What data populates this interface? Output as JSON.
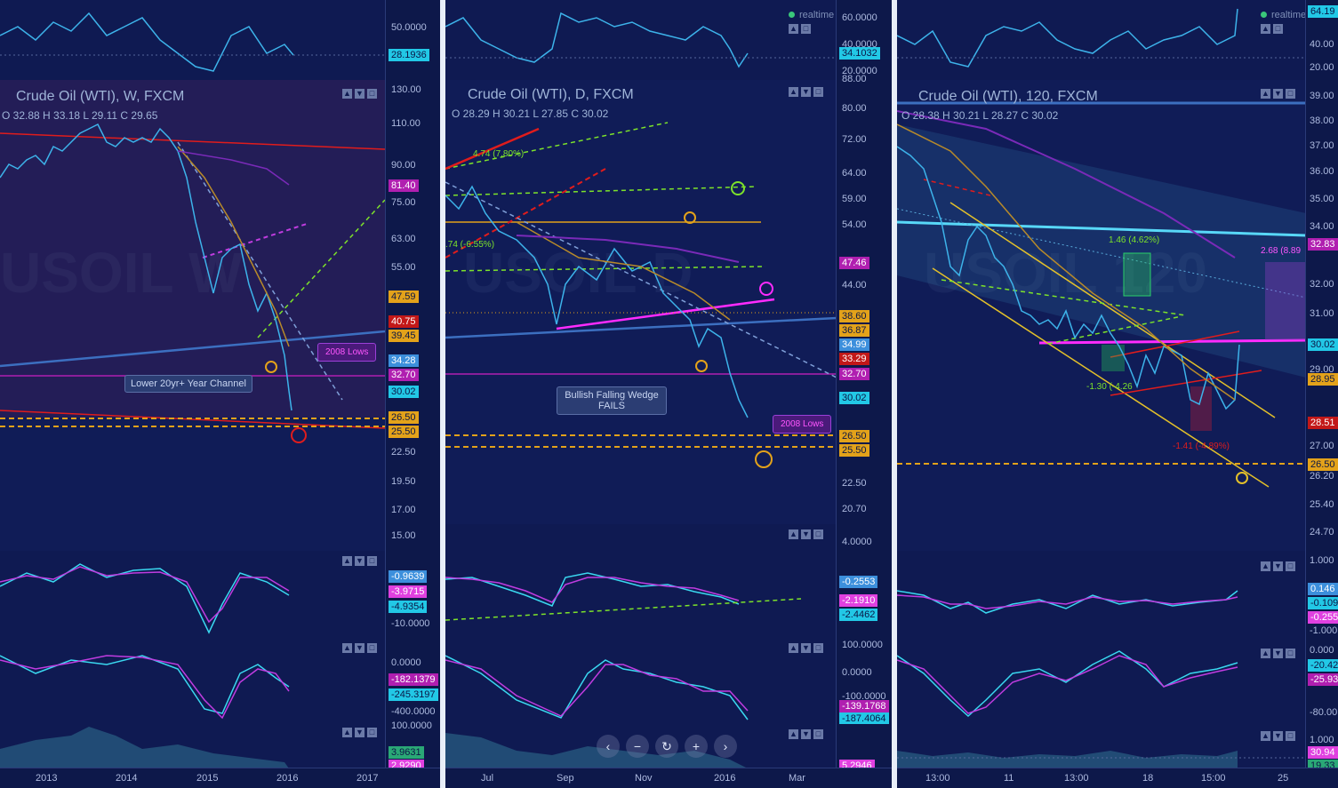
{
  "panels": [
    {
      "id": "weekly",
      "realtime": "",
      "title": "Crude Oil (WTI), W, FXCM",
      "ohlc": "O 32.88  H 33.18  L 29.11  C 29.65",
      "watermark": "USOIL W",
      "rsi_ticks": [
        "50.0000"
      ],
      "rsi_value": "28.1936",
      "price_ticks": [
        "130.00",
        "110.00",
        "90.00",
        "75.00",
        "63.00",
        "55.00",
        "22.50",
        "19.50",
        "17.00",
        "15.00"
      ],
      "price_tags": [
        {
          "text": "81.40",
          "color": "#b01fb0"
        },
        {
          "text": "47.59",
          "color": "#e3a21a"
        },
        {
          "text": "40.75",
          "color": "#c21818"
        },
        {
          "text": "39.45",
          "color": "#e3a21a"
        },
        {
          "text": "34.28",
          "color": "#3c8fdc"
        },
        {
          "text": "32.70",
          "color": "#b01fb0"
        },
        {
          "text": "30.02",
          "color": "#22c8e6"
        },
        {
          "text": "26.50",
          "color": "#e3a21a"
        },
        {
          "text": "25.50",
          "color": "#e3a21a"
        }
      ],
      "macd_ticks": [
        "-10.0000"
      ],
      "macd_tags": [
        {
          "text": "-0.9639",
          "color": "#3c8fdc"
        },
        {
          "text": "-3.9715",
          "color": "#e040e0"
        },
        {
          "text": "-4.9354",
          "color": "#22c8e6"
        }
      ],
      "stoch_ticks": [
        "0.0000",
        "-400.0000"
      ],
      "stoch_tags": [
        {
          "text": "-182.1379",
          "color": "#b01fb0"
        },
        {
          "text": "-245.3197",
          "color": "#22c8e6"
        }
      ],
      "vol_ticks": [
        "100.0000"
      ],
      "vol_tags": [
        {
          "text": "3.9631",
          "color": "#2aa876"
        },
        {
          "text": "2.9290",
          "color": "#e040e0"
        }
      ],
      "x_labels": [
        "2013",
        "2014",
        "2015",
        "2016",
        "2017"
      ],
      "callouts": [
        "Lower 20yr+ Year Channel"
      ],
      "lows": "2008 Lows"
    },
    {
      "id": "daily",
      "realtime": "realtime",
      "title": "Crude Oil (WTI), D, FXCM",
      "ohlc": "O 28.29  H 30.21  L 27.85  C 30.02",
      "watermark": "USOIL D",
      "rsi_ticks": [
        "60.0000",
        "40.0000",
        "20.0000"
      ],
      "rsi_value": "34.1032",
      "price_ticks": [
        "88.00",
        "80.00",
        "72.00",
        "64.00",
        "59.00",
        "54.00",
        "44.00",
        "22.50",
        "20.70"
      ],
      "price_tags": [
        {
          "text": "47.46",
          "color": "#b01fb0"
        },
        {
          "text": "38.60",
          "color": "#e3a21a"
        },
        {
          "text": "36.87",
          "color": "#e3a21a"
        },
        {
          "text": "34.99",
          "color": "#3c8fdc"
        },
        {
          "text": "33.29",
          "color": "#c21818"
        },
        {
          "text": "32.70",
          "color": "#b01fb0"
        },
        {
          "text": "30.02",
          "color": "#22c8e6"
        },
        {
          "text": "26.50",
          "color": "#e3a21a"
        },
        {
          "text": "25.50",
          "color": "#e3a21a"
        }
      ],
      "macd_ticks": [
        "4.0000"
      ],
      "macd_tags": [
        {
          "text": "-0.2553",
          "color": "#3c8fdc"
        },
        {
          "text": "-2.1910",
          "color": "#e040e0"
        },
        {
          "text": "-2.4462",
          "color": "#22c8e6"
        }
      ],
      "stoch_ticks": [
        "100.0000",
        "0.0000",
        "-100.0000"
      ],
      "stoch_tags": [
        {
          "text": "-139.1768",
          "color": "#b01fb0"
        },
        {
          "text": "-187.4064",
          "color": "#22c8e6"
        }
      ],
      "vol_ticks": [],
      "vol_tags": [
        {
          "text": "5.2946",
          "color": "#e040e0"
        }
      ],
      "x_labels": [
        "Jul",
        "Sep",
        "Nov",
        "2016",
        "Mar"
      ],
      "callouts": [
        "Bullish Falling Wedge\nFAILS"
      ],
      "lows": "2008 Lows",
      "annotations": [
        "4.74 (7.80%)",
        ".74 (-6.55%)"
      ],
      "nav": [
        "‹",
        "−",
        "↻",
        "+",
        "›"
      ]
    },
    {
      "id": "h120",
      "realtime": "realtime",
      "title": "Crude Oil (WTI), 120, FXCM",
      "ohlc": "O 28.38  H 30.21  L 28.27  C 30.02",
      "watermark": "USOIL 120",
      "rsi_ticks": [
        "40.00",
        "20.00"
      ],
      "rsi_value": "64.19",
      "price_ticks": [
        "39.00",
        "38.00",
        "37.00",
        "36.00",
        "35.00",
        "34.00",
        "32.00",
        "31.00",
        "29.00",
        "27.00",
        "26.20",
        "25.40",
        "24.70"
      ],
      "price_tags": [
        {
          "text": "32.83",
          "color": "#b01fb0"
        },
        {
          "text": "30.02",
          "color": "#22c8e6"
        },
        {
          "text": "28.95",
          "color": "#e3a21a"
        },
        {
          "text": "28.51",
          "color": "#c21818"
        },
        {
          "text": "26.50",
          "color": "#e3a21a"
        }
      ],
      "macd_ticks": [
        "1.000",
        "-1.000"
      ],
      "macd_tags": [
        {
          "text": "0.146",
          "color": "#3c8fdc"
        },
        {
          "text": "-0.109",
          "color": "#22c8e6"
        },
        {
          "text": "-0.255",
          "color": "#e040e0"
        }
      ],
      "stoch_ticks": [
        "0.000",
        "-80.00"
      ],
      "stoch_tags": [
        {
          "text": "-20.42",
          "color": "#22c8e6"
        },
        {
          "text": "-25.93",
          "color": "#b01fb0"
        }
      ],
      "vol_ticks": [
        "1.000"
      ],
      "vol_tags": [
        {
          "text": "30.94",
          "color": "#e040e0"
        },
        {
          "text": "19.33",
          "color": "#2aa876"
        }
      ],
      "x_labels": [
        "13:00",
        "11",
        "13:00",
        "18",
        "15:00",
        "25"
      ],
      "annotations": [
        "1.46 (4.62%)",
        "2.68 (8.89",
        "-1.30 (-4.26",
        "-1.41 (-4.89%)"
      ]
    }
  ],
  "colors": {
    "bg": "#0e1a52",
    "price": "#3db3ea",
    "magenta": "#ff2bff",
    "orange": "#e3a21a",
    "green": "#7de32a",
    "red": "#e01c1c"
  }
}
